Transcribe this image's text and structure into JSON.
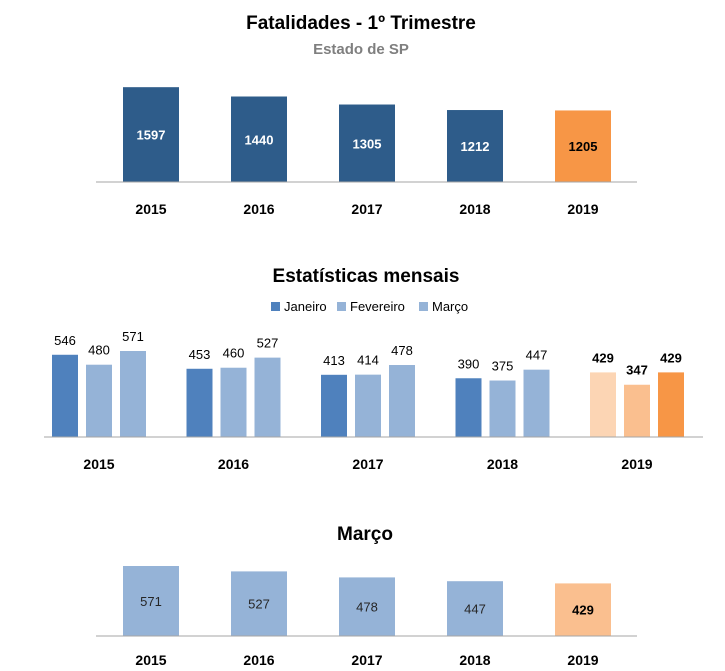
{
  "chart_data": [
    {
      "type": "bar",
      "title": "Fatalidades - 1º Trimestre",
      "subtitle": "Estado de SP",
      "categories": [
        "2015",
        "2016",
        "2017",
        "2018",
        "2019"
      ],
      "values": [
        1597,
        1440,
        1305,
        1212,
        1205
      ],
      "colors": [
        "#2e5c8a",
        "#2e5c8a",
        "#2e5c8a",
        "#2e5c8a",
        "#f79646"
      ],
      "data_labels": [
        "1597",
        "1440",
        "1305",
        "1212",
        "1205"
      ],
      "ylim": [
        0,
        1600
      ]
    },
    {
      "type": "bar",
      "title": "Estatísticas mensais",
      "categories": [
        "2015",
        "2016",
        "2017",
        "2018",
        "2019"
      ],
      "legend": [
        "Janeiro",
        "Fevereiro",
        "Março"
      ],
      "legend_position": "top",
      "legend_colors": [
        "#4f81bd",
        "#95b3d7",
        "#95b3d7"
      ],
      "series": [
        {
          "name": "Janeiro",
          "values": [
            546,
            453,
            413,
            390,
            429
          ],
          "labels": [
            "546",
            "453",
            "413",
            "390",
            "429"
          ]
        },
        {
          "name": "Fevereiro",
          "values": [
            480,
            460,
            414,
            375,
            347
          ],
          "labels": [
            "480",
            "460",
            "414",
            "375",
            "347"
          ]
        },
        {
          "name": "Março",
          "values": [
            571,
            527,
            478,
            447,
            429
          ],
          "labels": [
            "571",
            "527",
            "478",
            "447",
            "429"
          ]
        }
      ],
      "colors": {
        "Janeiro": [
          "#4f81bd",
          "#4f81bd",
          "#4f81bd",
          "#4f81bd",
          "#fcd5b4"
        ],
        "Fevereiro": [
          "#95b3d7",
          "#95b3d7",
          "#95b3d7",
          "#95b3d7",
          "#fabf8f"
        ],
        "Março": [
          "#95b3d7",
          "#95b3d7",
          "#95b3d7",
          "#95b3d7",
          "#f79646"
        ]
      },
      "ylim": [
        0,
        600
      ]
    },
    {
      "type": "bar",
      "title": "Março",
      "categories": [
        "2015",
        "2016",
        "2017",
        "2018",
        "2019"
      ],
      "values": [
        571,
        527,
        478,
        447,
        429
      ],
      "colors": [
        "#95b3d7",
        "#95b3d7",
        "#95b3d7",
        "#95b3d7",
        "#fabf8f"
      ],
      "data_labels": [
        "571",
        "527",
        "478",
        "447",
        "429"
      ],
      "ylim": [
        0,
        571
      ]
    }
  ]
}
